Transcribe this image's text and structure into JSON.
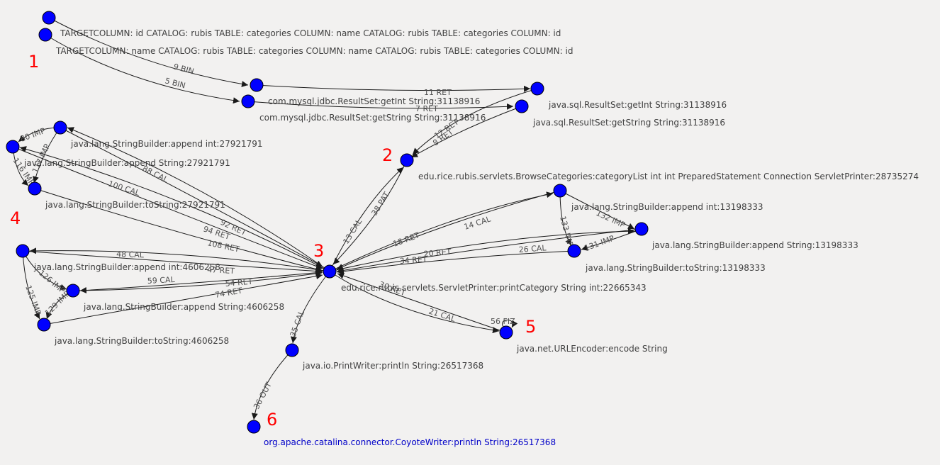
{
  "graph": {
    "node_color": "#0000ff",
    "label_color": "#404040",
    "selected_label_color": "#0000c8",
    "cluster_color": "#ff0000",
    "clusters": [
      "1",
      "2",
      "3",
      "4",
      "5",
      "6"
    ],
    "nodes": {
      "tc_id": "TARGETCOLUMN: id CATALOG: rubis TABLE: categories COLUMN: name CATALOG: rubis TABLE: categories COLUMN: id",
      "tc_name": "TARGETCOLUMN: name CATALOG: rubis TABLE: categories COLUMN: name CATALOG: rubis TABLE: categories COLUMN: id",
      "mysql_getint": "com.mysql.jdbc.ResultSet:getInt String:31138916",
      "mysql_getstring": "com.mysql.jdbc.ResultSet:getString String:31138916",
      "sql_getint": "java.sql.ResultSet:getInt String:31138916",
      "sql_getstring": "java.sql.ResultSet:getString String:31138916",
      "browse": "edu.rice.rubis.servlets.BrowseCategories:categoryList int int PreparedStatement Connection ServletPrinter:28735274",
      "sb1_append_int": "java.lang.StringBuilder:append int:27921791",
      "sb1_append_string": "java.lang.StringBuilder:append String:27921791",
      "sb1_tostring": "java.lang.StringBuilder:toString:27921791",
      "printer": "edu.rice.rubis.servlets.ServletPrinter:printCategory String int:22665343",
      "sb2_append_int": "java.lang.StringBuilder:append int:13198333",
      "sb2_append_string": "java.lang.StringBuilder:append String:13198333",
      "sb2_tostring": "java.lang.StringBuilder:toString:13198333",
      "sb3_append_int": "java.lang.StringBuilder:append int:4606258",
      "sb3_append_string": "java.lang.StringBuilder:append String:4606258",
      "sb3_tostring": "java.lang.StringBuilder:toString:4606258",
      "urlencoder": "java.net.URLEncoder:encode String",
      "println": "java.io.PrintWriter:println String:26517368",
      "coyote": "org.apache.catalina.connector.CoyoteWriter:println String:26517368"
    },
    "edges": {
      "e9": "9 BIN",
      "e5": "5 BIN",
      "e11": "11 RET",
      "e7": "7 RET",
      "e12": "12 RET",
      "e8": "8 RET",
      "e13": "13 CAL",
      "e38": "38 PAT",
      "e88": "88 CAL",
      "e100": "100 CAL",
      "e92": "92 RET",
      "e94": "94 RET",
      "e108": "108 RET",
      "e80": "80 IMP",
      "e117": "117 IMP",
      "e116": "116 IMP",
      "e18": "18 RET",
      "e14": "14 CAL",
      "e132": "132 IMP",
      "e133": "133 IMP",
      "e131": "131 IMP",
      "e20": "20 RET",
      "e26": "26 CAL",
      "e34": "34 RET",
      "e48": "48 CAL",
      "e47": "47 RET",
      "e59": "59 CAL",
      "e54": "54 RET",
      "e74": "74 RET",
      "e126": "126 IMP",
      "e125": "125 IMP",
      "e129": "129 IMP",
      "e30": "30 RET",
      "e21": "21 CAL",
      "e56": "56 FIZ",
      "e35": "35 CAL",
      "e36": "36 OUT"
    }
  }
}
